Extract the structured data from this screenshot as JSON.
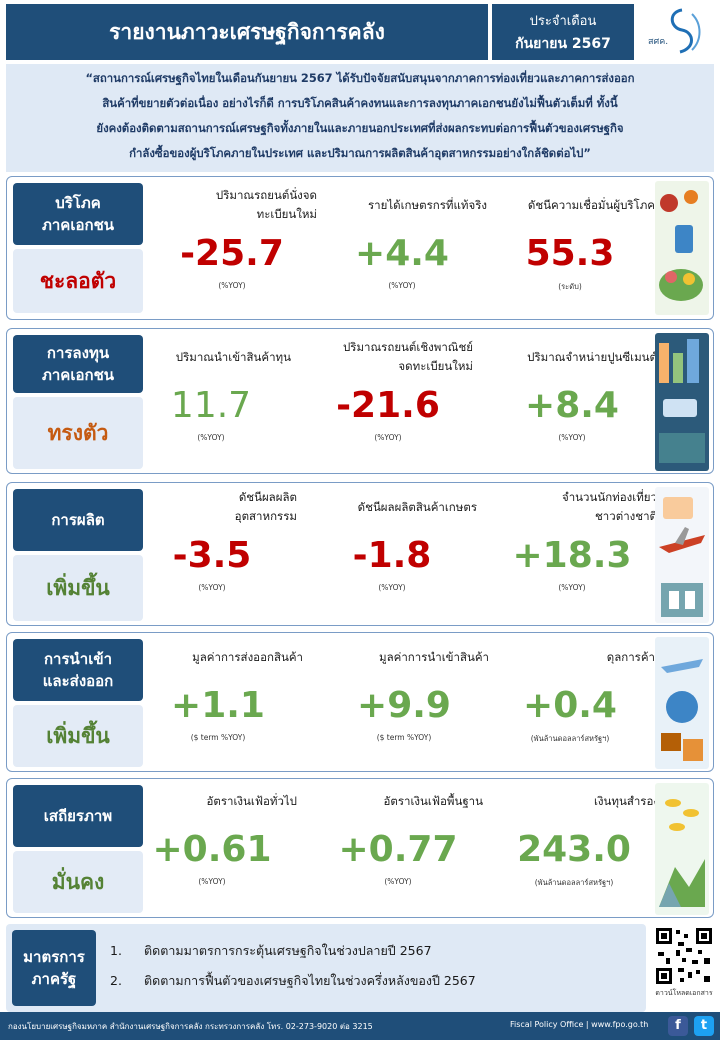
{
  "header": {
    "title": "รายงานภาวะเศรษฐกิจการคลัง",
    "month_label": "ประจำเดือน",
    "month_value": "กันยายน 2567",
    "logo_text": "สศค."
  },
  "summary": {
    "lines": [
      "“สถานการณ์เศรษฐกิจไทยในเดือนกันยายน 2567 ได้รับปัจจัยสนับสนุนจากภาคการท่องเที่ยวและภาคการส่งออก",
      "สินค้าที่ขยายตัวต่อเนื่อง อย่างไรก็ดี การบริโภคสินค้าคงทนและการลงทุนภาคเอกชนยังไม่ฟื้นตัวเต็มที่ ทั้งนี้",
      "ยังคงต้องติดตามสถานการณ์เศรษฐกิจทั้งภายในและภายนอกประเทศที่ส่งผลกระทบต่อการฟื้นตัวของเศรษฐกิจ",
      "กำลังซื้อของผู้บริโภคภายในประเทศ และปริมาณการผลิตสินค้าอุตสาหกรรมอย่างใกล้ชิดต่อไป”"
    ]
  },
  "sections": [
    {
      "category": [
        "บริโภค",
        "ภาคเอกชน"
      ],
      "status": "ชะลอตัว",
      "status_color": "#c00000",
      "indicators": [
        {
          "label": [
            "ปริมาณรถยนต์นั่งจด",
            "ทะเบียนใหม่"
          ],
          "value": "-25.7",
          "unit": "(%YOY)"
        },
        {
          "label": [
            "รายได้เกษตรกรที่แท้จริง"
          ],
          "value": "+4.4",
          "unit": "(%YOY)"
        },
        {
          "label": [
            "ดัชนีความเชื่อมั่นผู้บริโภค"
          ],
          "value": "55.3",
          "unit": "(ระดับ)"
        }
      ]
    },
    {
      "category": [
        "การลงทุน",
        "ภาคเอกชน"
      ],
      "status": "ทรงตัว",
      "status_color": "#c55a11",
      "indicators": [
        {
          "label": [
            "ปริมาณนำเข้าสินค้าทุน"
          ],
          "value": "11.7",
          "unit": "(%YOY)"
        },
        {
          "label": [
            "ปริมาณรถยนต์เชิงพาณิชย์",
            "จดทะเบียนใหม่"
          ],
          "value": "-21.6",
          "unit": "(%YOY)"
        },
        {
          "label": [
            "ปริมาณจำหน่ายปูนซีเมนต์"
          ],
          "value": "+8.4",
          "unit": "(%YOY)"
        }
      ]
    },
    {
      "category": [
        "การผลิต"
      ],
      "status": "เพิ่มขึ้น",
      "status_color": "#548235",
      "indicators": [
        {
          "label": [
            "ดัชนีผลผลิต",
            "อุตสาหกรรม"
          ],
          "value": "-3.5",
          "unit": "(%YOY)"
        },
        {
          "label": [
            "ดัชนีผลผลิตสินค้าเกษตร"
          ],
          "value": "-1.8",
          "unit": "(%YOY)"
        },
        {
          "label": [
            "จำนวนนักท่องเที่ยว",
            "ชาวต่างชาติ"
          ],
          "value": "+18.3",
          "unit": "(%YOY)"
        }
      ]
    },
    {
      "category": [
        "การนำเข้า",
        "และส่งออก"
      ],
      "status": "เพิ่มขึ้น",
      "status_color": "#548235",
      "indicators": [
        {
          "label": [
            "มูลค่าการส่งออกสินค้า"
          ],
          "value": "+1.1",
          "unit": "($ term %YOY)"
        },
        {
          "label": [
            "มูลค่าการนำเข้าสินค้า"
          ],
          "value": "+9.9",
          "unit": "($ term %YOY)"
        },
        {
          "label": [
            "ดุลการค้า"
          ],
          "value": "+0.4",
          "unit": "(พันล้านดอลลาร์สหรัฐฯ)"
        }
      ]
    },
    {
      "category": [
        "เสถียรภาพ"
      ],
      "status": "มั่นคง",
      "status_color": "#548235",
      "indicators": [
        {
          "label": [
            "อัตราเงินเฟ้อทั่วไป"
          ],
          "value": "+0.61",
          "unit": "(%YOY)"
        },
        {
          "label": [
            "อัตราเงินเฟ้อพื้นฐาน"
          ],
          "value": "+0.77",
          "unit": "(%YOY)"
        },
        {
          "label": [
            "เงินทุนสำรอง"
          ],
          "value": "243.0",
          "unit": "(พันล้านดอลลาร์สหรัฐฯ)"
        }
      ]
    }
  ],
  "value_colors": [
    "red",
    "green",
    "red",
    "green",
    "red",
    "green",
    "red",
    "red",
    "green",
    "green",
    "green",
    "green",
    "green",
    "green",
    "green"
  ],
  "measures": {
    "category": [
      "มาตรการ",
      "ภาครัฐ"
    ],
    "items": [
      {
        "num": "1.",
        "text": "ติดตามมาตรการกระตุ้นเศรษฐกิจในช่วงปลายปี 2567"
      },
      {
        "num": "2.",
        "text": "ติดตามการฟื้นตัวของเศรษฐกิจไทยในช่วงครึ่งหลังของปี 2567"
      }
    ],
    "qr_caption": "ดาวน์โหลดเอกสาร"
  },
  "footer": {
    "left": "กองนโยบายเศรษฐกิจมหภาค สำนักงานเศรษฐกิจการคลัง กระทรวงการคลัง โทร. 02-273-9020 ต่อ 3215",
    "right": "Fiscal Policy Office | www.fpo.go.th",
    "facebook": "f",
    "twitter": "t"
  }
}
